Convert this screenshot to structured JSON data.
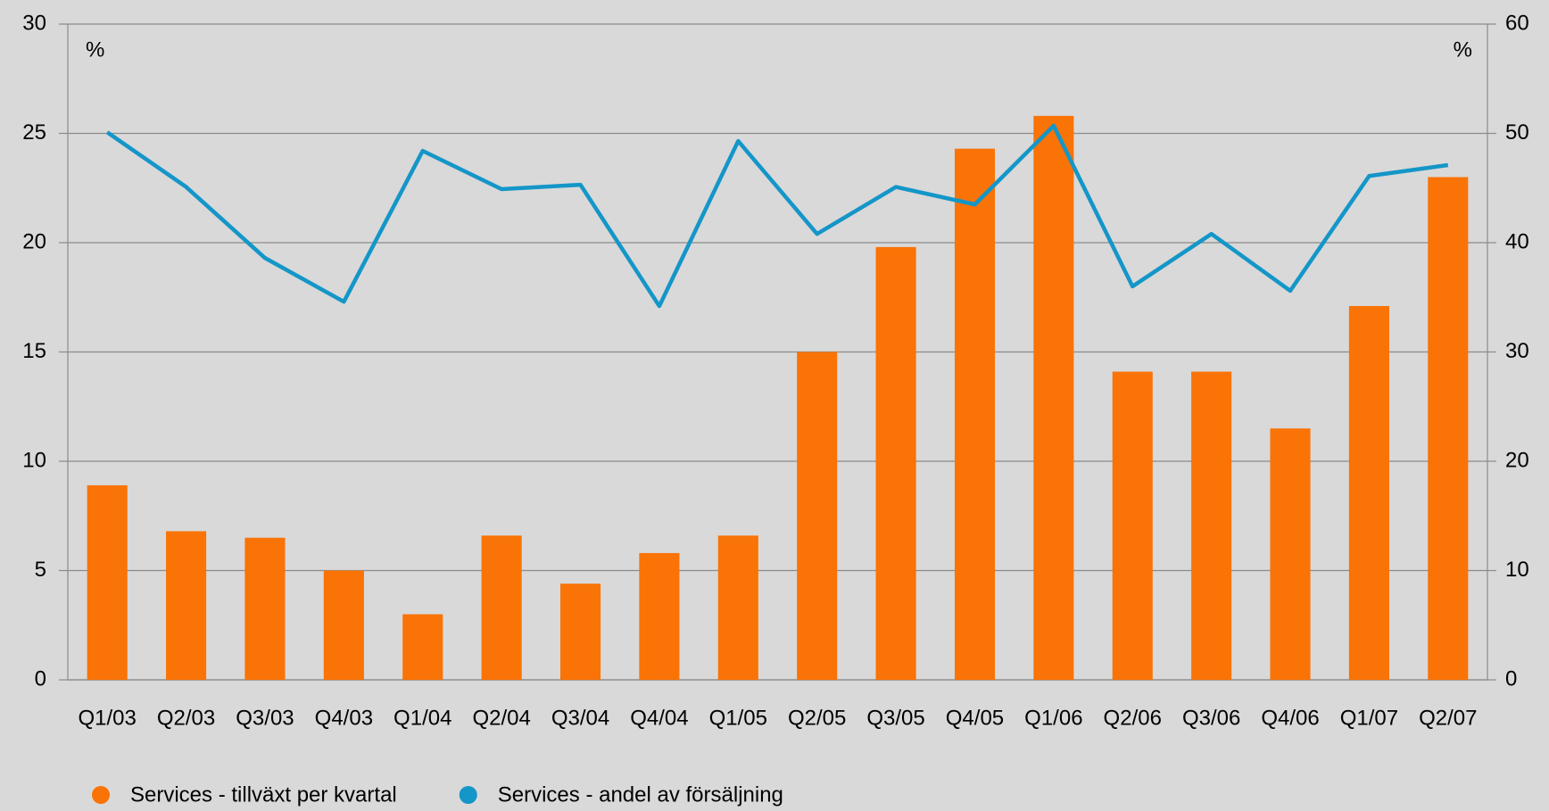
{
  "chart_data": {
    "type": "combo",
    "ylabel": "%",
    "y2label": "%",
    "categories": [
      "Q1/03",
      "Q2/03",
      "Q3/03",
      "Q4/03",
      "Q1/04",
      "Q2/04",
      "Q3/04",
      "Q4/04",
      "Q1/05",
      "Q2/05",
      "Q3/05",
      "Q4/05",
      "Q1/06",
      "Q2/06",
      "Q3/06",
      "Q4/06",
      "Q1/07",
      "Q2/07"
    ],
    "series": [
      {
        "name": "Services - tillväxt per kvartal",
        "type": "bar",
        "color": "#f97306",
        "values": [
          8.9,
          6.8,
          6.5,
          5.0,
          3.0,
          6.6,
          4.4,
          5.8,
          6.6,
          15.0,
          19.8,
          24.3,
          25.8,
          14.1,
          14.1,
          11.5,
          17.1,
          23.0
        ]
      },
      {
        "name": "Services - andel av försäljning",
        "type": "line",
        "axis": "y2",
        "color": "#1496c8",
        "values": [
          50.1,
          45.1,
          38.6,
          34.6,
          48.4,
          44.9,
          45.3,
          34.2,
          49.3,
          40.8,
          45.1,
          43.5,
          50.7,
          36.0,
          40.8,
          35.6,
          46.1,
          47.1
        ]
      }
    ],
    "ylim": [
      0,
      30
    ],
    "yticks": [
      0,
      5,
      10,
      15,
      20,
      25,
      30
    ],
    "y2lim": [
      0,
      60
    ],
    "y2ticks": [
      0,
      10,
      20,
      30,
      40,
      50,
      60
    ],
    "grid": true
  }
}
